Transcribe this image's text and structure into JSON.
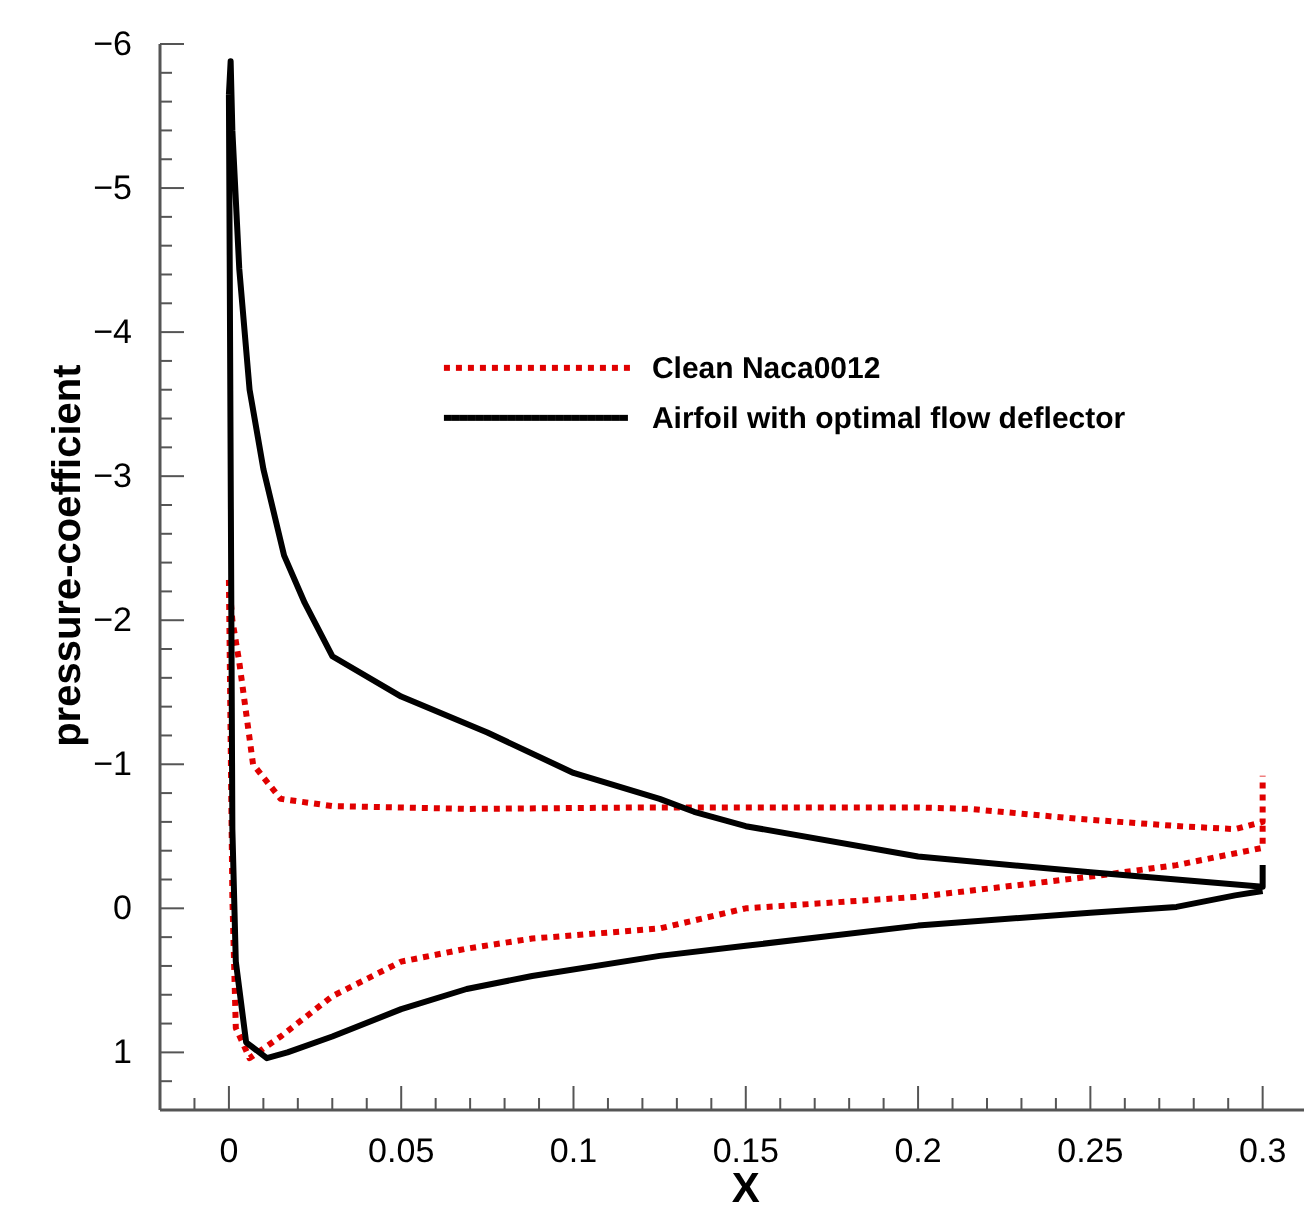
{
  "chart_data": {
    "type": "line",
    "xlabel": "X",
    "ylabel": "pressure-coefficient",
    "xlim": [
      -0.02,
      0.312
    ],
    "ylim": [
      1.4,
      -6
    ],
    "xticks": [
      {
        "value": -0.01,
        "label": null
      },
      {
        "value": 0,
        "label": "0"
      },
      {
        "value": 0.01,
        "label": null
      },
      {
        "value": 0.02,
        "label": null
      },
      {
        "value": 0.03,
        "label": null
      },
      {
        "value": 0.04,
        "label": null
      },
      {
        "value": 0.05,
        "label": "0.05"
      },
      {
        "value": 0.06,
        "label": null
      },
      {
        "value": 0.07,
        "label": null
      },
      {
        "value": 0.08,
        "label": null
      },
      {
        "value": 0.09,
        "label": null
      },
      {
        "value": 0.1,
        "label": "0.1"
      },
      {
        "value": 0.11,
        "label": null
      },
      {
        "value": 0.12,
        "label": null
      },
      {
        "value": 0.13,
        "label": null
      },
      {
        "value": 0.14,
        "label": null
      },
      {
        "value": 0.15,
        "label": "0.15"
      },
      {
        "value": 0.16,
        "label": null
      },
      {
        "value": 0.17,
        "label": null
      },
      {
        "value": 0.18,
        "label": null
      },
      {
        "value": 0.19,
        "label": null
      },
      {
        "value": 0.2,
        "label": "0.2"
      },
      {
        "value": 0.21,
        "label": null
      },
      {
        "value": 0.22,
        "label": null
      },
      {
        "value": 0.23,
        "label": null
      },
      {
        "value": 0.24,
        "label": null
      },
      {
        "value": 0.25,
        "label": "0.25"
      },
      {
        "value": 0.26,
        "label": null
      },
      {
        "value": 0.27,
        "label": null
      },
      {
        "value": 0.28,
        "label": null
      },
      {
        "value": 0.29,
        "label": null
      },
      {
        "value": 0.3,
        "label": "0.3"
      }
    ],
    "yticks": [
      {
        "value": -6,
        "label": "−6"
      },
      {
        "value": -5.8,
        "label": null
      },
      {
        "value": -5.6,
        "label": null
      },
      {
        "value": -5.4,
        "label": null
      },
      {
        "value": -5.2,
        "label": null
      },
      {
        "value": -5,
        "label": "−5"
      },
      {
        "value": -4.8,
        "label": null
      },
      {
        "value": -4.6,
        "label": null
      },
      {
        "value": -4.4,
        "label": null
      },
      {
        "value": -4.2,
        "label": null
      },
      {
        "value": -4,
        "label": "−4"
      },
      {
        "value": -3.8,
        "label": null
      },
      {
        "value": -3.6,
        "label": null
      },
      {
        "value": -3.4,
        "label": null
      },
      {
        "value": -3.2,
        "label": null
      },
      {
        "value": -3,
        "label": "−3"
      },
      {
        "value": -2.8,
        "label": null
      },
      {
        "value": -2.6,
        "label": null
      },
      {
        "value": -2.4,
        "label": null
      },
      {
        "value": -2.2,
        "label": null
      },
      {
        "value": -2,
        "label": "−2"
      },
      {
        "value": -1.8,
        "label": null
      },
      {
        "value": -1.6,
        "label": null
      },
      {
        "value": -1.4,
        "label": null
      },
      {
        "value": -1.2,
        "label": null
      },
      {
        "value": -1,
        "label": "−1"
      },
      {
        "value": -0.8,
        "label": null
      },
      {
        "value": -0.6,
        "label": null
      },
      {
        "value": -0.4,
        "label": null
      },
      {
        "value": -0.2,
        "label": null
      },
      {
        "value": 0,
        "label": "0"
      },
      {
        "value": 0.2,
        "label": null
      },
      {
        "value": 0.4,
        "label": null
      },
      {
        "value": 0.6,
        "label": null
      },
      {
        "value": 0.8,
        "label": null
      },
      {
        "value": 1,
        "label": "1"
      },
      {
        "value": 1.2,
        "label": null
      }
    ],
    "grid": false,
    "legend": "top left",
    "series": [
      {
        "name": "Clean Naca0012",
        "color": "#e00000",
        "line_style": "dotted",
        "x": [
          0,
          0.001,
          0.003,
          0.007,
          0.015,
          0.03,
          0.069,
          0.12,
          0.2,
          0.215,
          0.247,
          0.276,
          0.292,
          0.3,
          0.3,
          null,
          0,
          0.001,
          0.002,
          0.006,
          0.015,
          0.03,
          0.05,
          0.069,
          0.088,
          0.125,
          0.15,
          0.2,
          0.25,
          0.275,
          0.3,
          0.3
        ],
        "values": [
          -2.28,
          -2.0,
          -1.71,
          -1.0,
          -0.76,
          -0.71,
          -0.69,
          -0.7,
          -0.7,
          -0.69,
          -0.62,
          -0.57,
          -0.55,
          -0.6,
          -0.92,
          null,
          -2.28,
          -0.08,
          0.83,
          1.04,
          0.89,
          0.61,
          0.37,
          0.28,
          0.21,
          0.14,
          0.0,
          -0.08,
          -0.22,
          -0.3,
          -0.42,
          -0.6
        ]
      },
      {
        "name": "Airfoil with optimal flow deflector",
        "color": "#000000",
        "line_style": "solid",
        "x": [
          0,
          0.0005,
          0.001,
          0.003,
          0.006,
          0.01,
          0.016,
          0.022,
          0.03,
          0.05,
          0.075,
          0.1,
          0.125,
          0.135,
          0.15,
          0.2,
          0.25,
          0.3,
          0.3,
          null,
          0,
          0.001,
          0.002,
          0.005,
          0.011,
          0.017,
          0.03,
          0.05,
          0.069,
          0.088,
          0.125,
          0.15,
          0.2,
          0.25,
          0.275,
          0.292,
          0.3
        ],
        "values": [
          -5.65,
          -5.88,
          -5.4,
          -4.44,
          -3.6,
          -3.05,
          -2.45,
          -2.12,
          -1.75,
          -1.47,
          -1.22,
          -0.94,
          -0.76,
          -0.67,
          -0.57,
          -0.36,
          -0.25,
          -0.15,
          -0.3,
          null,
          -5.65,
          -0.55,
          0.37,
          0.93,
          1.04,
          1.0,
          0.89,
          0.7,
          0.56,
          0.47,
          0.33,
          0.26,
          0.12,
          0.03,
          -0.01,
          -0.09,
          -0.12
        ]
      }
    ]
  }
}
